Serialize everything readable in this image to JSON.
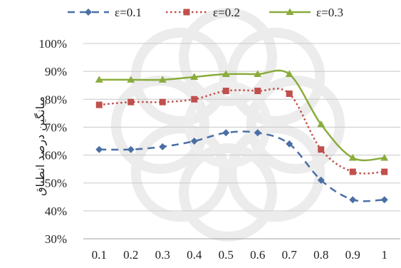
{
  "chart_data": {
    "type": "line",
    "title": "",
    "xlabel": "",
    "ylabel": "میانگین درصد انطباق",
    "x": [
      0.1,
      0.2,
      0.3,
      0.4,
      0.5,
      0.6,
      0.7,
      0.8,
      0.9,
      1
    ],
    "x_tick_labels": [
      "0.1",
      "0.2",
      "0.3",
      "0.4",
      "0.5",
      "0.6",
      "0.7",
      "0.8",
      "0.9",
      "1"
    ],
    "ylim": [
      30,
      100
    ],
    "y_ticks": [
      30,
      40,
      50,
      60,
      70,
      80,
      90,
      100
    ],
    "y_tick_labels": [
      "30%",
      "40%",
      "50%",
      "60%",
      "70%",
      "80%",
      "90%",
      "100%"
    ],
    "grid": "horizontal",
    "legend_position": "top",
    "series": [
      {
        "name": "ε=0.1",
        "values": [
          62,
          62,
          63,
          65,
          68,
          68,
          64,
          51,
          44,
          44
        ],
        "color": "#4a6fa5",
        "dash": "dashed",
        "marker": "diamond"
      },
      {
        "name": "ε=0.2",
        "values": [
          78,
          79,
          79,
          80,
          83,
          83,
          82,
          62,
          54,
          54
        ],
        "color": "#c0504d",
        "dash": "dotted",
        "marker": "square"
      },
      {
        "name": "ε=0.3",
        "values": [
          87,
          87,
          87,
          88,
          89,
          89,
          89,
          71,
          59,
          59
        ],
        "color": "#8aac3c",
        "dash": "solid",
        "marker": "triangle"
      }
    ]
  }
}
